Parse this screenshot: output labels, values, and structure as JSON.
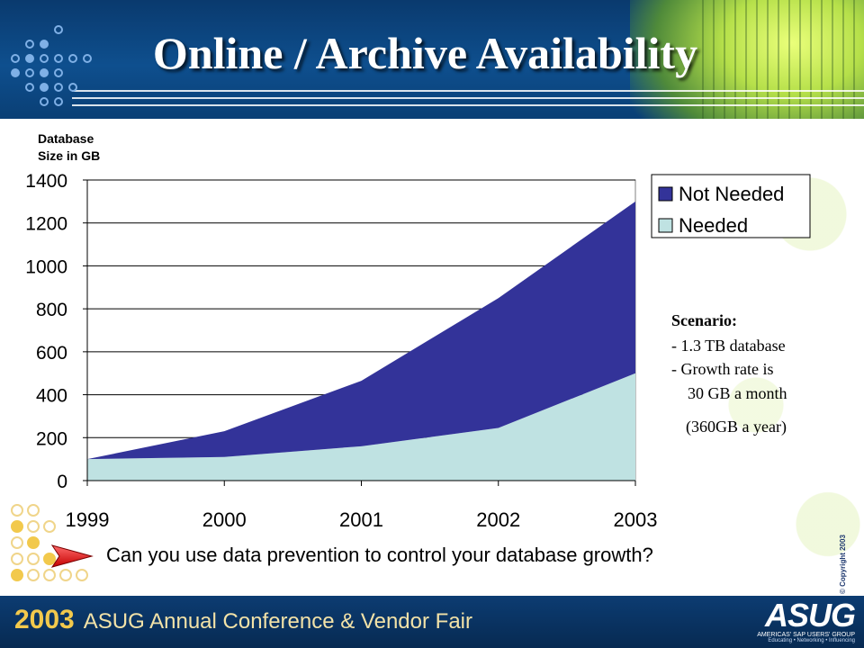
{
  "slide": {
    "title": "Online / Archive Availability",
    "question": "Can you use data prevention to control your database growth?",
    "scenario": {
      "heading": "Scenario:",
      "line1": "- 1.3 TB database",
      "line2": "- Growth rate is",
      "line3": "30 GB a month",
      "line4": "(360GB a year)"
    },
    "footer": {
      "year": "2003",
      "event": "ASUG Annual Conference & Vendor Fair",
      "logo": "ASUG",
      "logo_sub": "AMERICAS' SAP USERS' GROUP",
      "logo_tag": "Educating • Networking • Influencing",
      "copyright": "© Copyright 2003"
    }
  },
  "chart_data": {
    "type": "area",
    "stacked": true,
    "title": "",
    "ylabel_lines": [
      "Database",
      "Size in GB"
    ],
    "xlabel": "",
    "categories": [
      "1999",
      "2000",
      "2001",
      "2002",
      "2003"
    ],
    "yticks": [
      0,
      200,
      400,
      600,
      800,
      1000,
      1200,
      1400
    ],
    "ylim": [
      0,
      1400
    ],
    "grid": true,
    "legend": "top-right",
    "series": [
      {
        "name": "Needed",
        "values": [
          100,
          110,
          160,
          245,
          500
        ],
        "color": "#bfe2e2"
      },
      {
        "name": "Not Needed",
        "values": [
          0,
          120,
          305,
          605,
          800
        ],
        "color": "#333399"
      }
    ]
  }
}
